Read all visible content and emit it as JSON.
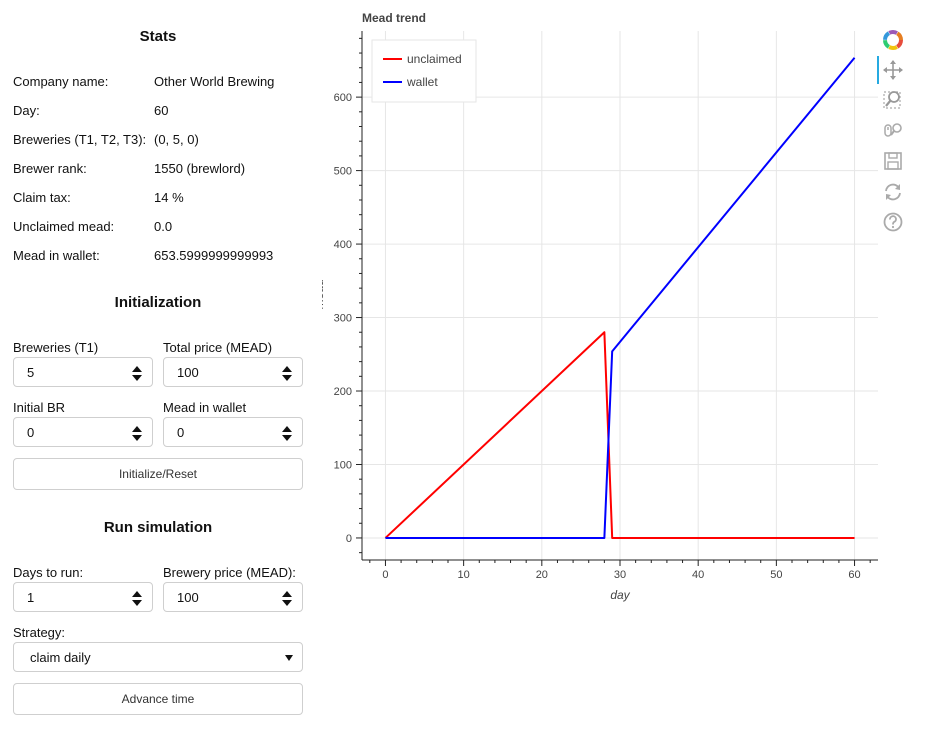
{
  "stats": {
    "title": "Stats",
    "rows": [
      {
        "label": "Company name:",
        "value": "Other World Brewing"
      },
      {
        "label": "Day:",
        "value": "60"
      },
      {
        "label": "Breweries (T1, T2, T3):",
        "value": "(0, 5, 0)"
      },
      {
        "label": "Brewer rank:",
        "value": "1550 (brewlord)"
      },
      {
        "label": "Claim tax:",
        "value": "14 %"
      },
      {
        "label": "Unclaimed mead:",
        "value": "0.0"
      },
      {
        "label": "Mead in wallet:",
        "value": "653.5999999999993"
      }
    ]
  },
  "initialization": {
    "title": "Initialization",
    "breweries_label": "Breweries (T1)",
    "breweries_value": "5",
    "total_price_label": "Total price (MEAD)",
    "total_price_value": "100",
    "initial_br_label": "Initial BR",
    "initial_br_value": "0",
    "mead_wallet_label": "Mead in wallet",
    "mead_wallet_value": "0",
    "reset_button": "Initialize/Reset"
  },
  "simulation": {
    "title": "Run simulation",
    "days_label": "Days to run:",
    "days_value": "1",
    "brewery_price_label": "Brewery price (MEAD):",
    "brewery_price_value": "100",
    "strategy_label": "Strategy:",
    "strategy_value": "claim daily",
    "advance_button": "Advance time"
  },
  "toolbar": {
    "icons": [
      "bokeh-logo-icon",
      "pan-icon",
      "box-zoom-icon",
      "wheel-zoom-icon",
      "save-icon",
      "reset-icon",
      "help-icon"
    ]
  },
  "chart_data": {
    "type": "line",
    "title": "Mead trend",
    "xlabel": "day",
    "ylabel": "mead",
    "xlim": [
      -3,
      63
    ],
    "ylim": [
      -30,
      690
    ],
    "xticks": [
      0,
      10,
      20,
      30,
      40,
      50,
      60
    ],
    "yticks": [
      0,
      100,
      200,
      300,
      400,
      500,
      600
    ],
    "grid": true,
    "legend_position": "top-left",
    "series": [
      {
        "name": "unclaimed",
        "color": "#ff0000",
        "x": [
          0,
          28,
          29,
          60
        ],
        "y": [
          0,
          280,
          0,
          0
        ]
      },
      {
        "name": "wallet",
        "color": "#0000ff",
        "x": [
          0,
          28,
          29,
          60
        ],
        "y": [
          0,
          0,
          254,
          653.6
        ]
      }
    ]
  }
}
